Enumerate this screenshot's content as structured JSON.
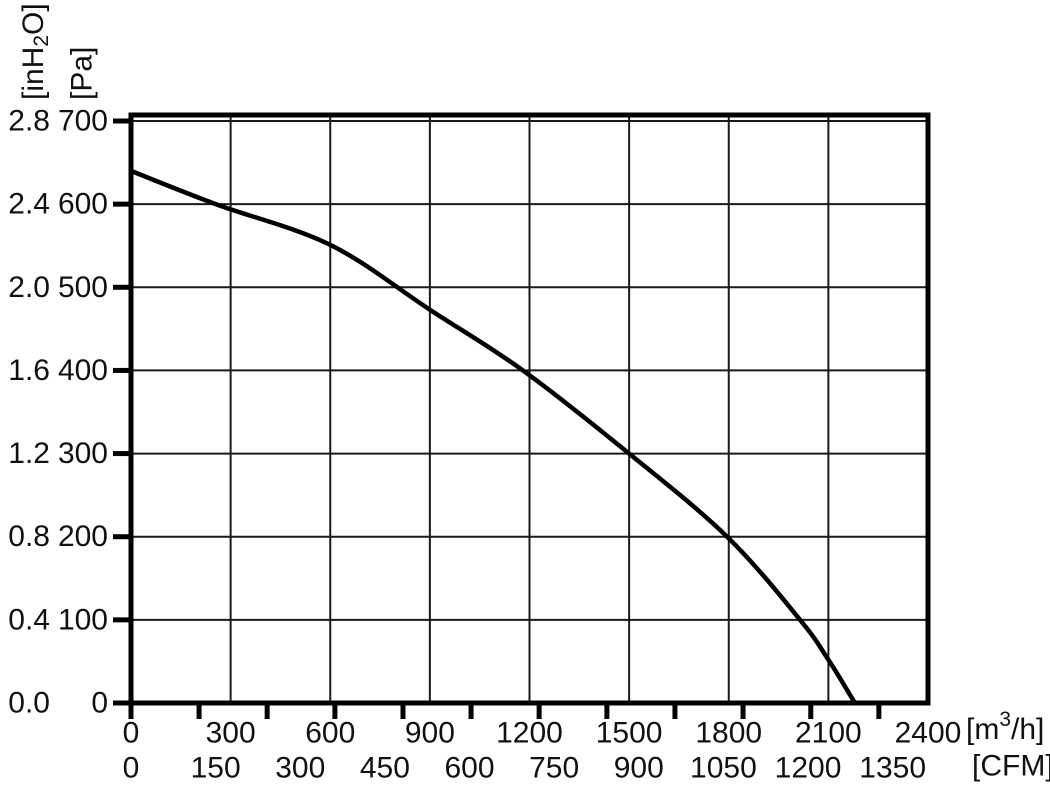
{
  "colors": {
    "background": "#ffffff",
    "ink": "#111111",
    "frame": "#000000",
    "grid": "#1a1a1a",
    "curve": "#000000"
  },
  "chart_data": {
    "type": "line",
    "title": "",
    "description": "Fan performance curve: static pressure versus volumetric airflow",
    "grid": true,
    "legend": false,
    "x_axis": {
      "primary_unit_display": "[m³/h]",
      "primary_unit_parts": {
        "pre": "[m",
        "sup": "3",
        "post": "/h]"
      },
      "secondary_unit_display": "[CFM]",
      "primary_ticks_m3h": [
        0,
        300,
        600,
        900,
        1200,
        1500,
        1800,
        2100,
        2400
      ],
      "secondary_ticks_cfm": [
        0,
        150,
        300,
        450,
        600,
        750,
        900,
        1050,
        1200,
        1350
      ],
      "range_m3h": [
        0,
        2400
      ],
      "gridline_step_m3h": 300,
      "cfm_to_m3h_factor": 1.699,
      "bottom_minor_ticks_m3h": [
        0,
        205,
        410,
        614,
        819,
        1024,
        1229,
        1433,
        1638,
        1843,
        2047,
        2252
      ]
    },
    "y_axis": {
      "primary_unit_display": "[Pa]",
      "secondary_unit_display": "[inH₂O]",
      "secondary_unit_parts": {
        "pre": "[inH",
        "sub": "2",
        "post": "O]"
      },
      "primary_ticks_pa": [
        0,
        100,
        200,
        300,
        400,
        500,
        600,
        700
      ],
      "secondary_ticks_inh2o": [
        "0.0",
        "0.4",
        "0.8",
        "1.2",
        "1.6",
        "2.0",
        "2.4",
        "2.8"
      ],
      "range_pa": [
        0,
        700
      ],
      "gridline_step_pa": 100
    },
    "series": [
      {
        "name": "static-pressure-vs-airflow",
        "points_m3h_pa": [
          [
            0,
            640
          ],
          [
            255,
            600
          ],
          [
            600,
            551
          ],
          [
            900,
            473
          ],
          [
            1180,
            400
          ],
          [
            1500,
            300
          ],
          [
            1795,
            200
          ],
          [
            2015,
            100
          ],
          [
            2100,
            52
          ],
          [
            2180,
            0
          ]
        ]
      }
    ]
  }
}
